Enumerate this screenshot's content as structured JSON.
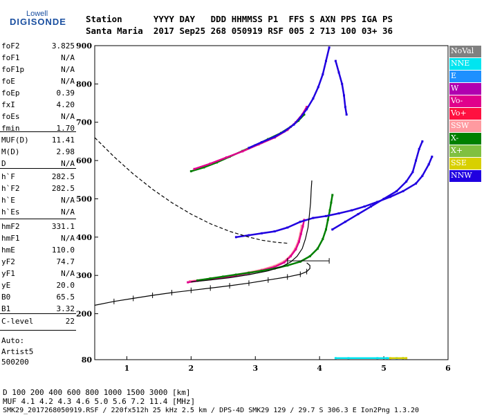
{
  "logo": {
    "top": "Lowell",
    "main": "DIGISONDE"
  },
  "header": {
    "line1": "Station      YYYY DAY   DDD HHMMSS P1  FFS S AXN PPS IGA PS",
    "line2": "Santa Maria  2017 Sep25 268 050919 RSF 005 2 713 100 03+ 36"
  },
  "params": {
    "group1": [
      {
        "k": "foF2",
        "v": "3.825"
      },
      {
        "k": "foF1",
        "v": "N/A"
      },
      {
        "k": "foF1p",
        "v": "N/A"
      },
      {
        "k": "foE",
        "v": "N/A"
      },
      {
        "k": "foEp",
        "v": "0.39"
      },
      {
        "k": "fxI",
        "v": "4.20"
      },
      {
        "k": "foEs",
        "v": "N/A"
      },
      {
        "k": "fmin",
        "v": "1.70"
      }
    ],
    "group2": [
      {
        "k": "MUF(D)",
        "v": "11.41"
      },
      {
        "k": "M(D)",
        "v": "2.98"
      },
      {
        "k": "D",
        "v": "N/A"
      }
    ],
    "group3": [
      {
        "k": "h`F",
        "v": "282.5"
      },
      {
        "k": "h`F2",
        "v": "282.5"
      },
      {
        "k": "h`E",
        "v": "N/A"
      },
      {
        "k": "h`Es",
        "v": "N/A"
      }
    ],
    "group4": [
      {
        "k": "hmF2",
        "v": "331.1"
      },
      {
        "k": "hmF1",
        "v": "N/A"
      },
      {
        "k": "hmE",
        "v": "110.0"
      },
      {
        "k": "yF2",
        "v": "74.7"
      },
      {
        "k": "yF1",
        "v": "N/A"
      },
      {
        "k": "yE",
        "v": "20.0"
      },
      {
        "k": "B0",
        "v": "65.5"
      },
      {
        "k": "B1",
        "v": "3.32"
      }
    ],
    "group5": [
      {
        "k": "C-level",
        "v": "22"
      }
    ]
  },
  "notes": {
    "auto": "Auto:",
    "artist": "Artist5",
    "code": "500200"
  },
  "legend": [
    {
      "label": "NoVal",
      "color": "#808080"
    },
    {
      "label": "NNE",
      "color": "#00e5f0"
    },
    {
      "label": "E",
      "color": "#1e90ff"
    },
    {
      "label": "W",
      "color": "#b000b0"
    },
    {
      "label": "Vo-",
      "color": "#e0008c"
    },
    {
      "label": "Vo+",
      "color": "#ff1040"
    },
    {
      "label": "SSW",
      "color": "#ff9aa0"
    },
    {
      "label": "X-",
      "color": "#008000"
    },
    {
      "label": "X+",
      "color": "#80c040"
    },
    {
      "label": "SSE",
      "color": "#d8d000"
    },
    {
      "label": "NNW",
      "color": "#2000e0"
    }
  ],
  "footer": {
    "row1": "D      100  200  400  600  800 1000 1500 3000 [km]",
    "row2": "MUF    4.1  4.2  4.3  4.6  5.0  5.6  7.2 11.4 [MHz]",
    "row3": "SMK29_2017268050919.RSF / 220fx512h 25 kHz 2.5 km / DPS-4D SMK29 129 / 29.7 S 306.3 E Ion2Png 1.3.20"
  },
  "chart_data": {
    "type": "scatter",
    "xlabel": "",
    "ylabel": "",
    "xlim": [
      0.5,
      6.0
    ],
    "ylim": [
      80,
      900
    ],
    "x_ticks": [
      1,
      2,
      3,
      4,
      5,
      6
    ],
    "y_ticks": [
      80,
      200,
      300,
      400,
      500,
      600,
      700,
      800,
      900
    ],
    "grid": false,
    "legend_position": "right",
    "series": [
      {
        "color": "#ff9aa0",
        "points": [
          [
            1.98,
            285
          ],
          [
            2.15,
            288
          ],
          [
            2.3,
            292
          ],
          [
            2.5,
            296
          ],
          [
            2.7,
            302
          ],
          [
            2.9,
            308
          ],
          [
            3.1,
            315
          ],
          [
            3.3,
            325
          ],
          [
            3.45,
            337
          ],
          [
            3.55,
            352
          ],
          [
            3.62,
            370
          ],
          [
            3.67,
            390
          ],
          [
            3.7,
            410
          ],
          [
            3.72,
            430
          ]
        ]
      },
      {
        "color": "#e0008c",
        "points": [
          [
            1.95,
            282
          ],
          [
            2.1,
            286
          ],
          [
            2.3,
            290
          ],
          [
            2.5,
            294
          ],
          [
            2.7,
            300
          ],
          [
            2.9,
            306
          ],
          [
            3.1,
            313
          ],
          [
            3.3,
            322
          ],
          [
            3.45,
            334
          ],
          [
            3.55,
            350
          ],
          [
            3.63,
            368
          ],
          [
            3.68,
            388
          ],
          [
            3.71,
            408
          ],
          [
            3.74,
            428
          ],
          [
            3.76,
            445
          ]
        ]
      },
      {
        "color": "#008000",
        "points": [
          [
            2.1,
            287
          ],
          [
            2.3,
            292
          ],
          [
            2.5,
            297
          ],
          [
            2.7,
            302
          ],
          [
            2.9,
            307
          ],
          [
            3.1,
            312
          ],
          [
            3.3,
            318
          ],
          [
            3.5,
            326
          ],
          [
            3.7,
            336
          ],
          [
            3.85,
            350
          ],
          [
            3.97,
            370
          ],
          [
            4.05,
            395
          ],
          [
            4.1,
            420
          ],
          [
            4.13,
            445
          ],
          [
            4.16,
            470
          ],
          [
            4.18,
            490
          ],
          [
            4.2,
            510
          ]
        ]
      },
      {
        "color": "#008000",
        "points": [
          [
            2.0,
            572
          ],
          [
            2.2,
            582
          ],
          [
            2.4,
            595
          ],
          [
            2.6,
            610
          ],
          [
            2.8,
            625
          ],
          [
            3.0,
            640
          ],
          [
            3.2,
            656
          ],
          [
            3.4,
            672
          ],
          [
            3.55,
            688
          ],
          [
            3.67,
            704
          ],
          [
            3.76,
            720
          ]
        ]
      },
      {
        "color": "#e0008c",
        "points": [
          [
            2.05,
            578
          ],
          [
            2.3,
            592
          ],
          [
            2.55,
            608
          ],
          [
            2.8,
            624
          ],
          [
            3.05,
            642
          ],
          [
            3.3,
            660
          ],
          [
            3.5,
            680
          ],
          [
            3.63,
            700
          ],
          [
            3.73,
            720
          ],
          [
            3.8,
            740
          ]
        ]
      },
      {
        "color": "#2000e0",
        "points": [
          [
            2.9,
            633
          ],
          [
            3.1,
            648
          ],
          [
            3.3,
            662
          ],
          [
            3.45,
            676
          ],
          [
            3.6,
            694
          ],
          [
            3.7,
            712
          ],
          [
            3.8,
            734
          ],
          [
            3.9,
            762
          ],
          [
            3.98,
            792
          ],
          [
            4.05,
            825
          ],
          [
            4.1,
            860
          ],
          [
            4.15,
            895
          ]
        ]
      },
      {
        "color": "#2000e0",
        "points": [
          [
            4.25,
            860
          ],
          [
            4.3,
            830
          ],
          [
            4.35,
            800
          ],
          [
            4.38,
            770
          ],
          [
            4.4,
            740
          ],
          [
            4.42,
            720
          ]
        ]
      },
      {
        "color": "#2000e0",
        "points": [
          [
            2.7,
            400
          ],
          [
            2.9,
            405
          ],
          [
            3.1,
            410
          ],
          [
            3.3,
            415
          ],
          [
            3.5,
            425
          ],
          [
            3.7,
            440
          ],
          [
            3.9,
            450
          ],
          [
            4.1,
            455
          ],
          [
            4.3,
            462
          ],
          [
            4.5,
            470
          ],
          [
            4.7,
            480
          ],
          [
            4.9,
            492
          ],
          [
            5.1,
            505
          ],
          [
            5.3,
            520
          ],
          [
            5.5,
            540
          ],
          [
            5.6,
            560
          ],
          [
            5.7,
            590
          ],
          [
            5.75,
            610
          ]
        ]
      },
      {
        "color": "#2000e0",
        "points": [
          [
            4.2,
            420
          ],
          [
            4.4,
            440
          ],
          [
            4.6,
            460
          ],
          [
            4.8,
            480
          ],
          [
            5.0,
            500
          ],
          [
            5.2,
            520
          ],
          [
            5.35,
            545
          ],
          [
            5.45,
            570
          ],
          [
            5.5,
            600
          ],
          [
            5.55,
            630
          ],
          [
            5.6,
            650
          ]
        ]
      },
      {
        "color": "#00e5f0",
        "points": [
          [
            4.25,
            84
          ],
          [
            4.45,
            84
          ],
          [
            4.9,
            84
          ],
          [
            5.05,
            84
          ],
          [
            5.2,
            84
          ],
          [
            5.3,
            84
          ]
        ]
      },
      {
        "color": "#d8d000",
        "points": [
          [
            5.1,
            84
          ],
          [
            5.3,
            84
          ],
          [
            5.35,
            84
          ]
        ]
      }
    ],
    "curves": [
      {
        "style": "dashed",
        "points": [
          [
            0.5,
            660
          ],
          [
            0.8,
            610
          ],
          [
            1.1,
            565
          ],
          [
            1.4,
            525
          ],
          [
            1.7,
            490
          ],
          [
            2.0,
            460
          ],
          [
            2.3,
            435
          ],
          [
            2.6,
            415
          ],
          [
            2.9,
            400
          ],
          [
            3.1,
            392
          ],
          [
            3.3,
            387
          ],
          [
            3.5,
            384
          ]
        ]
      },
      {
        "style": "solid",
        "points": [
          [
            0.5,
            222
          ],
          [
            0.8,
            232
          ],
          [
            1.1,
            240
          ],
          [
            1.4,
            248
          ],
          [
            1.7,
            255
          ],
          [
            2.0,
            261
          ],
          [
            2.3,
            267
          ],
          [
            2.6,
            273
          ],
          [
            2.9,
            280
          ],
          [
            3.2,
            288
          ],
          [
            3.5,
            296
          ],
          [
            3.7,
            303
          ],
          [
            3.8,
            310
          ],
          [
            3.85,
            318
          ],
          [
            3.85,
            326
          ],
          [
            3.8,
            333
          ]
        ]
      },
      {
        "style": "solid",
        "points": [
          [
            2.0,
            283
          ],
          [
            2.3,
            288
          ],
          [
            2.6,
            294
          ],
          [
            2.9,
            302
          ],
          [
            3.2,
            312
          ],
          [
            3.4,
            322
          ],
          [
            3.55,
            335
          ],
          [
            3.65,
            350
          ],
          [
            3.73,
            370
          ],
          [
            3.78,
            395
          ],
          [
            3.82,
            425
          ],
          [
            3.84,
            455
          ],
          [
            3.86,
            490
          ],
          [
            3.87,
            525
          ],
          [
            3.88,
            548
          ]
        ]
      }
    ]
  }
}
